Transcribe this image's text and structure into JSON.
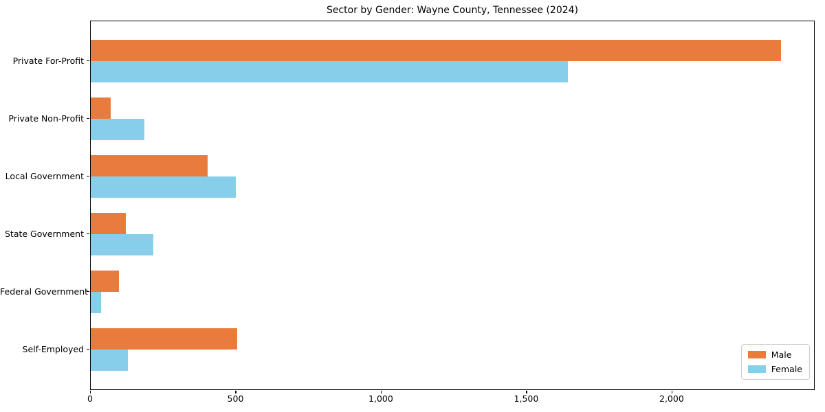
{
  "title": "Sector by Gender: Wayne County, Tennessee (2024)",
  "chart_data": {
    "type": "bar",
    "orientation": "horizontal",
    "title": "Sector by Gender: Wayne County, Tennessee (2024)",
    "categories": [
      "Private For-Profit",
      "Private Non-Profit",
      "Local Government",
      "State Government",
      "Federal Government",
      "Self-Employed"
    ],
    "series": [
      {
        "name": "Male",
        "color": "#e97c3c",
        "values": [
          2373,
          69,
          402,
          121,
          97,
          504
        ]
      },
      {
        "name": "Female",
        "color": "#87ceeb",
        "values": [
          1641,
          184,
          499,
          215,
          36,
          128
        ]
      }
    ],
    "xlabel": "",
    "ylabel": "",
    "xlim": [
      0,
      2492
    ],
    "x_ticks": [
      {
        "value": 0,
        "label": "0"
      },
      {
        "value": 500,
        "label": "500"
      },
      {
        "value": 1000,
        "label": "1,000"
      },
      {
        "value": 1500,
        "label": "1,500"
      },
      {
        "value": 2000,
        "label": "2,000"
      }
    ],
    "grid": false,
    "legend_position": "lower right",
    "background_color": "#ffffff",
    "spine_color": "#000000"
  }
}
